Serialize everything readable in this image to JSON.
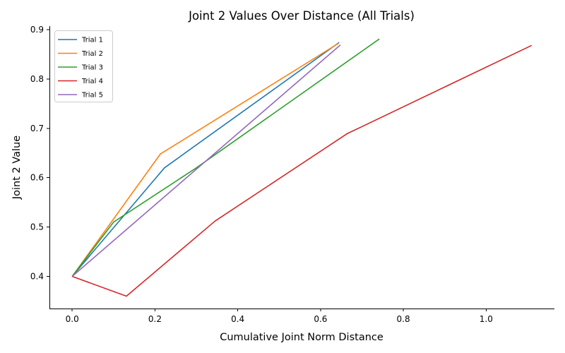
{
  "chart_data": {
    "type": "line",
    "title": "Joint 2 Values Over Distance (All Trials)",
    "xlabel": "Cumulative Joint Norm Distance",
    "ylabel": "Joint 2 Value",
    "xlim": [
      -0.055,
      1.165
    ],
    "ylim": [
      0.335,
      0.907
    ],
    "xticks": [
      0.0,
      0.2,
      0.4,
      0.6,
      0.8,
      1.0
    ],
    "xtick_labels": [
      "0.0",
      "0.2",
      "0.4",
      "0.6",
      "0.8",
      "1.0"
    ],
    "yticks": [
      0.4,
      0.5,
      0.6,
      0.7,
      0.8,
      0.9
    ],
    "ytick_labels": [
      "0.4",
      "0.5",
      "0.6",
      "0.7",
      "0.8",
      "0.9"
    ],
    "grid": false,
    "legend_position": "top-left",
    "series": [
      {
        "name": "Trial 1",
        "color": "#1f77b4",
        "x": [
          0.0,
          0.223,
          0.645
        ],
        "y": [
          0.4,
          0.62,
          0.874
        ]
      },
      {
        "name": "Trial 2",
        "color": "#ff7f0e",
        "x": [
          0.0,
          0.213,
          0.643
        ],
        "y": [
          0.4,
          0.648,
          0.872
        ]
      },
      {
        "name": "Trial 3",
        "color": "#2ca02c",
        "x": [
          0.0,
          0.1,
          0.3,
          0.742
        ],
        "y": [
          0.4,
          0.51,
          0.62,
          0.881
        ]
      },
      {
        "name": "Trial 4",
        "color": "#d62728",
        "x": [
          0.0,
          0.131,
          0.345,
          0.664,
          1.11
        ],
        "y": [
          0.4,
          0.36,
          0.512,
          0.689,
          0.868
        ]
      },
      {
        "name": "Trial 5",
        "color": "#9467bd",
        "x": [
          0.0,
          0.648
        ],
        "y": [
          0.4,
          0.869
        ]
      }
    ]
  }
}
